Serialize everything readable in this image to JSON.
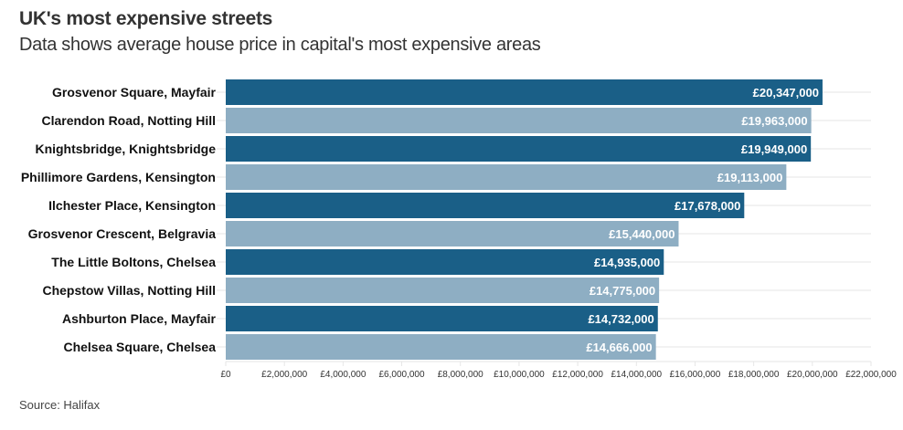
{
  "header": {
    "title": "UK's most expensive streets",
    "subtitle": "Data shows average house price in capital's most expensive areas"
  },
  "footer": {
    "source": "Source: Halifax"
  },
  "colors": {
    "dark_bar": "#1a5f87",
    "light_bar": "#8eaec3",
    "grid": "#e6e6e6"
  },
  "chart_data": {
    "type": "bar",
    "orientation": "horizontal",
    "title": "UK's most expensive streets",
    "subtitle": "Data shows average house price in capital's most expensive areas",
    "xlabel": "",
    "ylabel": "",
    "xlim": [
      0,
      22000000
    ],
    "grid": true,
    "categories": [
      "Grosvenor Square, Mayfair",
      "Clarendon Road, Notting Hill",
      "Knightsbridge, Knightsbridge",
      "Phillimore Gardens, Kensington",
      "Ilchester Place, Kensington",
      "Grosvenor Crescent, Belgravia",
      "The Little Boltons, Chelsea",
      "Chepstow Villas, Notting Hill",
      "Ashburton Place, Mayfair",
      "Chelsea Square, Chelsea"
    ],
    "values": [
      20347000,
      19963000,
      19949000,
      19113000,
      17678000,
      15440000,
      14935000,
      14775000,
      14732000,
      14666000
    ],
    "value_labels": [
      "£20,347,000",
      "£19,963,000",
      "£19,949,000",
      "£19,113,000",
      "£17,678,000",
      "£15,440,000",
      "£14,935,000",
      "£14,775,000",
      "£14,732,000",
      "£14,666,000"
    ],
    "ticks": [
      0,
      2000000,
      4000000,
      6000000,
      8000000,
      10000000,
      12000000,
      14000000,
      16000000,
      18000000,
      20000000,
      22000000
    ],
    "tick_labels": [
      "£0",
      "£2,000,000",
      "£4,000,000",
      "£6,000,000",
      "£8,000,000",
      "£10,000,000",
      "£12,000,000",
      "£14,000,000",
      "£16,000,000",
      "£18,000,000",
      "£20,000,000",
      "£22,000,000"
    ],
    "source": "Source: Halifax"
  }
}
